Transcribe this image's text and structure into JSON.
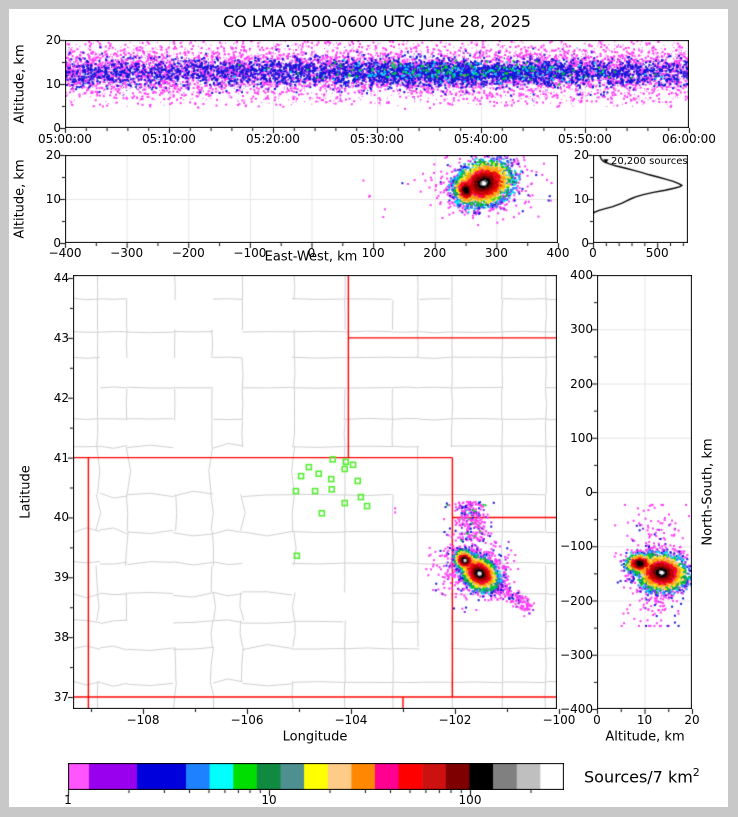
{
  "title": "CO LMA 0500-0600 UTC June 28, 2025",
  "frame_color": "#c8c8c8",
  "panels": {
    "time_height": {
      "ylabel": "Altitude, km",
      "yticks": [
        0,
        10,
        20
      ],
      "xtick_labels": [
        "05:00:00",
        "05:10:00",
        "05:20:00",
        "05:30:00",
        "05:40:00",
        "05:50:00",
        "06:00:00"
      ]
    },
    "east_west": {
      "ylabel": "Altitude, km",
      "xlabel": "East-West, km",
      "xticks": [
        -400,
        -300,
        -200,
        -100,
        0,
        100,
        200,
        300,
        400
      ],
      "yticks": [
        0,
        10,
        20
      ]
    },
    "histogram": {
      "annotation": "20,200 sources",
      "xticks": [
        0,
        500
      ],
      "yticks": [
        0,
        10,
        20
      ]
    },
    "map": {
      "xlabel": "Longitude",
      "ylabel": "Latitude",
      "xticks": [
        -108,
        -106,
        -104,
        -102,
        -100
      ],
      "yticks": [
        37,
        38,
        39,
        40,
        41,
        42,
        43,
        44
      ],
      "county_color": "#cfcfcf",
      "state_color": "#ff0000",
      "station_color": "#55ee33"
    },
    "north_south": {
      "xlabel": "Altitude, km",
      "ylabel": "North-South, km",
      "xticks": [
        0,
        10,
        20
      ],
      "yticks": [
        400,
        300,
        200,
        100,
        0,
        -100,
        -200,
        -300,
        -400
      ]
    },
    "colorbar": {
      "label": "Sources/7 km",
      "label_sup": "2",
      "tick_values": [
        1,
        10,
        100
      ],
      "minor_ticks": [
        2,
        3,
        4,
        5,
        6,
        7,
        8,
        9,
        20,
        30,
        40,
        50,
        60,
        70,
        80,
        90,
        200
      ],
      "colors": [
        "#ff55ff",
        "#9900ee",
        "#0000dd",
        "#1e82ff",
        "#00ffff",
        "#00dd00",
        "#0f8a40",
        "#4e8f8f",
        "#ffff00",
        "#ffcc88",
        "#ff8800",
        "#ff0090",
        "#ff0000",
        "#cc1111",
        "#7e0000",
        "#000000",
        "#808080",
        "#bfbfbf",
        "#ffffff"
      ],
      "stops": [
        0,
        0.0423,
        0.1391,
        0.2379,
        0.2855,
        0.3331,
        0.3808,
        0.4284,
        0.476,
        0.5237,
        0.5713,
        0.6189,
        0.6665,
        0.7142,
        0.7618,
        0.8094,
        0.8571,
        0.9047,
        0.9523,
        1.0
      ]
    }
  },
  "colors": {
    "magenta": "#ff3df5",
    "blue": "#1515d8",
    "cyan": "#00dfee",
    "green": "#00cc22",
    "purple": "#8a2be2",
    "density_palette": [
      {
        "min": 0.86,
        "colors": [
          "#ff3df5"
        ]
      },
      {
        "min": 0.74,
        "colors": [
          "#1515d8",
          "#1515d8",
          "#8a2be2"
        ]
      },
      {
        "min": 0.63,
        "colors": [
          "#2b7bff",
          "#00dfee"
        ]
      },
      {
        "min": 0.52,
        "colors": [
          "#00cc22",
          "#12994d"
        ]
      },
      {
        "min": 0.43,
        "colors": [
          "#ffee00",
          "#ffcf8a"
        ]
      },
      {
        "min": 0.35,
        "colors": [
          "#ff9911"
        ]
      },
      {
        "min": 0.27,
        "colors": [
          "#ee1100",
          "#ff0077",
          "#ee1100"
        ]
      },
      {
        "min": 0.19,
        "colors": [
          "#c00000"
        ]
      },
      {
        "min": 0.12,
        "colors": [
          "#740000"
        ]
      },
      {
        "min": 0.065,
        "colors": [
          "#000000"
        ]
      },
      {
        "min": 0.035,
        "colors": [
          "#8f8f8f",
          "#0a0a0a"
        ]
      },
      {
        "min": 0.0,
        "colors": [
          "#ffffff",
          "#d8d8d8"
        ]
      }
    ]
  },
  "chart_data": {
    "type": "scatter",
    "description": "Lightning Mapping Array source locations, 4-panel projection plot plus altitude histogram and log color scale of source density",
    "total_sources": "20,200 sources",
    "time_height": {
      "x_range_seconds": [
        0,
        3600
      ],
      "alt_range_km": [
        0,
        20
      ],
      "band_mean_alt_km": 13,
      "band_sd_km": 2.6,
      "n_magenta": 5200,
      "n_uniform": 1700,
      "n_blue": 3400,
      "n_blue_core": 1200,
      "core_time_s": 2250,
      "core_time_sd_s": 540,
      "n_cyan": 160,
      "n_green": 120,
      "n_streaks": 8
    },
    "east_west": {
      "x_range_km": [
        -400,
        400
      ],
      "alt_range_km": [
        0,
        20
      ],
      "cores": [
        {
          "x": 278,
          "alt": 13.8,
          "sx": 24,
          "sy": 2.5,
          "rot": -18,
          "n": 2300,
          "white": true
        },
        {
          "x": 249,
          "alt": 12.2,
          "sx": 9,
          "sy": 1.6,
          "rot": -18,
          "n": 420,
          "white": false
        }
      ],
      "outliers": {
        "cx": 278,
        "calt": 12.5,
        "sx": 45,
        "sy": 3.6,
        "n": 300
      },
      "strays": {
        "n": 8,
        "x_min": 60,
        "x_max": 215,
        "alt_min": 5,
        "alt_max": 17
      }
    },
    "histogram": {
      "count_range": [
        0,
        740
      ],
      "profile_count_alt": [
        [
          52,
          20
        ],
        [
          58,
          19.5
        ],
        [
          66,
          19
        ],
        [
          84,
          18.5
        ],
        [
          128,
          18
        ],
        [
          182,
          17.5
        ],
        [
          255,
          17
        ],
        [
          318,
          16.5
        ],
        [
          382,
          16
        ],
        [
          438,
          15.5
        ],
        [
          505,
          15
        ],
        [
          565,
          14.5
        ],
        [
          625,
          14
        ],
        [
          668,
          13.5
        ],
        [
          692,
          13.1
        ],
        [
          678,
          12.8
        ],
        [
          640,
          12.5
        ],
        [
          562,
          12
        ],
        [
          470,
          11.5
        ],
        [
          392,
          11
        ],
        [
          332,
          10.5
        ],
        [
          292,
          10
        ],
        [
          258,
          9.5
        ],
        [
          222,
          9
        ],
        [
          185,
          8.6
        ],
        [
          148,
          8.2
        ],
        [
          95,
          7.8
        ],
        [
          48,
          7.4
        ],
        [
          18,
          7.1
        ],
        [
          4,
          6.8
        ],
        [
          0,
          6.5
        ]
      ],
      "marker_count_alt": [
        101,
        18.6
      ]
    },
    "map": {
      "lon_range": [
        -109.346,
        -100.038
      ],
      "lat_range": [
        36.8,
        44.05
      ],
      "state_borders": [
        [
          [
            -109.346,
            41
          ],
          [
            -102.05,
            41
          ]
        ],
        [
          [
            -109.346,
            37
          ],
          [
            -100.038,
            37
          ]
        ],
        [
          [
            -109.05,
            41
          ],
          [
            -109.05,
            36.8
          ]
        ],
        [
          [
            -102.05,
            41
          ],
          [
            -102.05,
            37
          ]
        ],
        [
          [
            -104.05,
            44.05
          ],
          [
            -104.05,
            41
          ]
        ],
        [
          [
            -104.05,
            43
          ],
          [
            -100.038,
            43
          ]
        ],
        [
          [
            -102.05,
            40
          ],
          [
            -100.038,
            40
          ]
        ],
        [
          [
            -103.0,
            37
          ],
          [
            -103.0,
            36.8
          ]
        ]
      ],
      "stations_lon_lat": [
        [
          -104.35,
          40.97
        ],
        [
          -104.1,
          40.93
        ],
        [
          -103.96,
          40.88
        ],
        [
          -104.81,
          40.84
        ],
        [
          -104.12,
          40.81
        ],
        [
          -104.96,
          40.69
        ],
        [
          -104.62,
          40.73
        ],
        [
          -104.38,
          40.64
        ],
        [
          -103.87,
          40.61
        ],
        [
          -105.06,
          40.44
        ],
        [
          -104.69,
          40.44
        ],
        [
          -104.37,
          40.47
        ],
        [
          -103.81,
          40.34
        ],
        [
          -104.12,
          40.24
        ],
        [
          -103.69,
          40.19
        ],
        [
          -104.56,
          40.07
        ],
        [
          -105.04,
          39.36
        ]
      ],
      "blob_cores": [
        {
          "lon": -101.55,
          "lat": 39.08,
          "sx": 0.19,
          "sy": 0.12,
          "rot": 38,
          "n": 2500,
          "white": true
        },
        {
          "lon": -101.83,
          "lat": 39.3,
          "sx": 0.1,
          "sy": 0.075,
          "rot": 38,
          "n": 800,
          "white": true
        }
      ],
      "blob_outliers": {
        "lon": -101.62,
        "lat": 39.15,
        "sx": 0.33,
        "sy": 0.26,
        "n": 430
      },
      "tail": {
        "from": [
          -101.3,
          38.92
        ],
        "to": [
          -100.55,
          38.48
        ],
        "n": 170,
        "spread_deg": 0.07
      },
      "north_scatter": {
        "lon": -101.74,
        "lon_sd": 0.17,
        "lat_min": 39.6,
        "lat_max": 40.28,
        "n": 260
      },
      "west_strays": {
        "lon_min": -102.6,
        "lon_max": -102.08,
        "lat_min": 38.85,
        "lat_max": 39.65,
        "n": 26
      },
      "station_area_dots": [
        [
          -103.17,
          40.17
        ],
        [
          -103.17,
          40.1
        ]
      ]
    },
    "north_south": {
      "ns_range_km": [
        -400,
        400
      ],
      "alt_range_km": [
        0,
        20
      ],
      "cores": [
        {
          "alt": 13.4,
          "ns": -147,
          "sx": 2.7,
          "sy": 17,
          "rot": 8,
          "n": 2300,
          "white": true
        },
        {
          "alt": 8.8,
          "ns": -130,
          "sx": 1.5,
          "sy": 9,
          "rot": 0,
          "n": 420,
          "white": false
        }
      ],
      "outliers": {
        "calt": 12,
        "cns": -140,
        "salt": 3.6,
        "sns": 55,
        "n": 380,
        "ns_max": -22,
        "ns_min": -245
      }
    }
  }
}
